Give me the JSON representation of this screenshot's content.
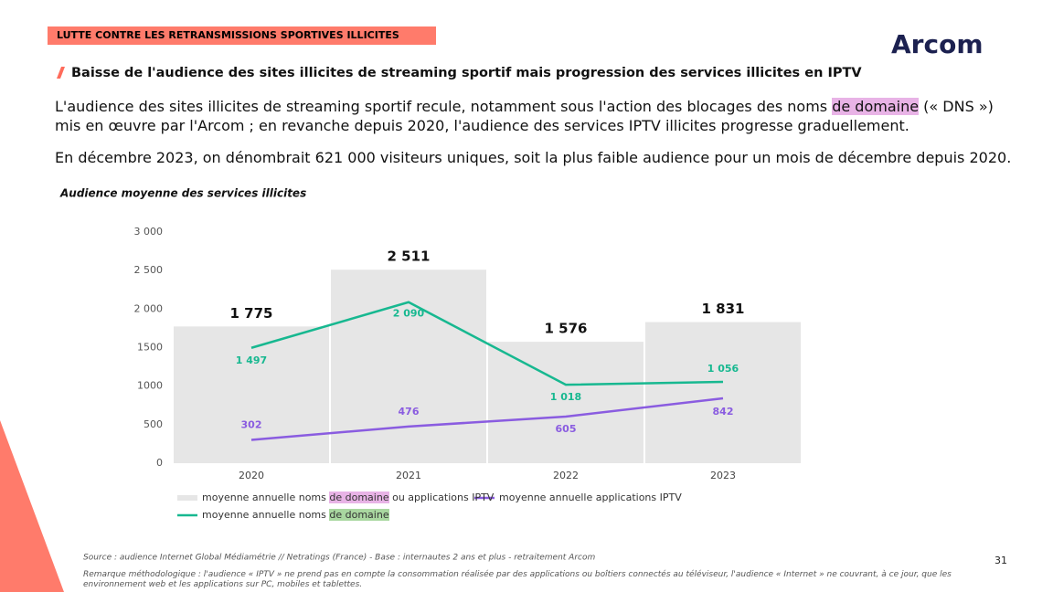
{
  "header": {
    "tag": "LUTTE CONTRE LES RETRANSMISSIONS SPORTIVES ILLICITES",
    "logo": "Arcom",
    "subtitle": "Baisse de l'audience des sites illicites de streaming sportif mais progression des services illicites en IPTV",
    "paragraphs": [
      {
        "text": "L'audience des sites illicites de streaming sportif recule, notamment sous l'action des blocages des noms de domaine (« DNS ») mis en œuvre par l'Arcom ; en revanche depuis 2020, l'audience des services IPTV illicites progresse graduellement.",
        "highlight": "de domaine"
      },
      {
        "text": "En décembre 2023, on dénombrait 621 000 visiteurs uniques, soit la plus faible audience pour un mois de décembre depuis 2020."
      }
    ]
  },
  "chart_data": {
    "type": "bar",
    "title": "Audience moyenne des services illicites",
    "categories": [
      "2020",
      "2021",
      "2022",
      "2023"
    ],
    "series": [
      {
        "name": "moyenne annuelle noms de domaine ou applications IPTV",
        "highlight": "de domaine",
        "type": "bar",
        "color": "#e6e6e6",
        "values": [
          1775,
          2511,
          1576,
          1831
        ],
        "value_labels": [
          "1 775",
          "2 511",
          "1 576",
          "1 831"
        ]
      },
      {
        "name": "moyenne annuelle applications IPTV",
        "type": "line",
        "color": "#8a5ce0",
        "values": [
          302,
          476,
          605,
          842
        ]
      },
      {
        "name": "moyenne annuelle noms de domaine",
        "highlight": "de domaine",
        "type": "line",
        "color": "#17b890",
        "values": [
          1497,
          2090,
          1018,
          1056
        ],
        "value_labels": [
          "1 497",
          "2 090",
          "1 018",
          "1 056"
        ]
      }
    ],
    "ylim": [
      0,
      3000
    ],
    "yticks": [
      0,
      500,
      1000,
      1500,
      {
        "value": 2000,
        "label": "2 000"
      },
      {
        "value": 2500,
        "label": "2 500"
      },
      {
        "value": 3000,
        "label": "3 000"
      }
    ],
    "grid": false
  },
  "footer": {
    "source": "Source : audience Internet Global Médiamétrie // Netratings (France) - Base : internautes 2 ans et plus - retraitement Arcom",
    "note": "Remarque méthodologique : l'audience « IPTV » ne prend pas en compte la consommation réalisée par des applications ou boîtiers connectés au téléviseur, l'audience « Internet » ne couvrant, à ce jour, que les environnement web et les applications sur PC, mobiles et tablettes.",
    "page": "31"
  }
}
